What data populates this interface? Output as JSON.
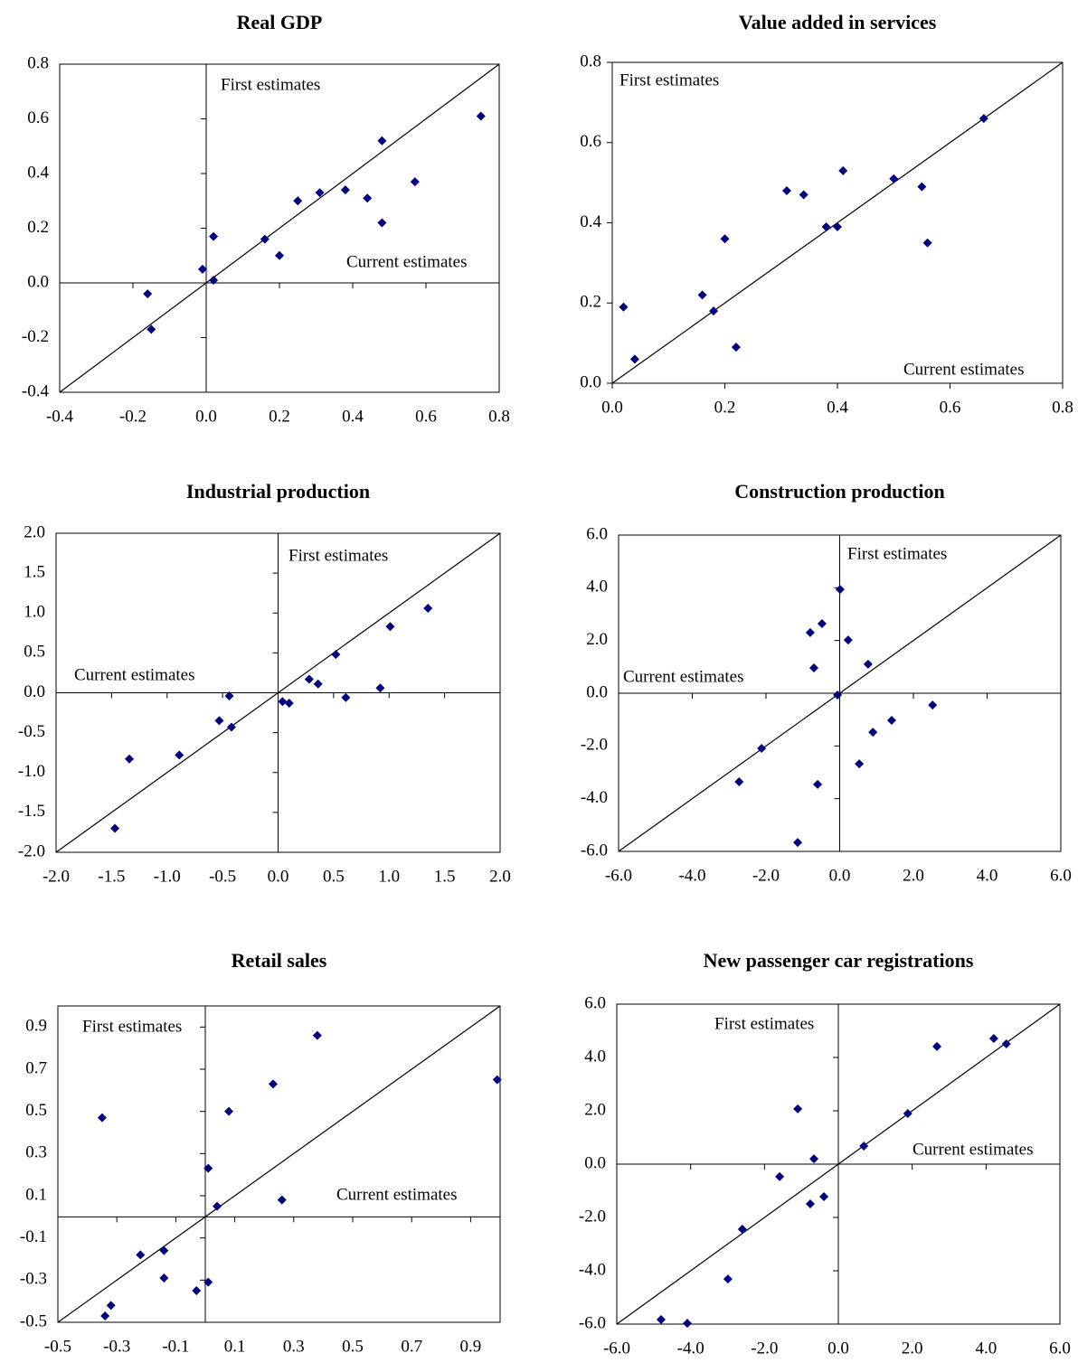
{
  "chart_data": [
    {
      "type": "scatter",
      "title": "Real GDP",
      "annotations": [
        "First estimates",
        "Current estimates"
      ],
      "color": "#000080",
      "x": [
        -0.16,
        -0.15,
        -0.01,
        0.02,
        0.02,
        0.16,
        0.2,
        0.25,
        0.31,
        0.38,
        0.44,
        0.48,
        0.48,
        0.57,
        0.75
      ],
      "values": [
        -0.04,
        -0.17,
        0.05,
        0.17,
        0.01,
        0.16,
        0.1,
        0.3,
        0.33,
        0.34,
        0.31,
        0.22,
        0.52,
        0.37,
        0.61
      ],
      "xlim": [
        -0.4,
        0.8
      ],
      "ylim": [
        -0.4,
        0.8
      ],
      "xticks": [
        -0.4,
        -0.2,
        {
          "value": 0,
          "label": "0.0"
        },
        0.2,
        0.4,
        0.6,
        0.8
      ],
      "yticks": [
        -0.4,
        -0.2,
        {
          "value": 0,
          "label": "0.0"
        },
        0.2,
        0.4,
        0.6,
        0.8
      ]
    },
    {
      "type": "scatter",
      "title": "Value added in services",
      "annotations": [
        "First estimates",
        "Current estimates"
      ],
      "color": "#000080",
      "x": [
        0.02,
        0.04,
        0.16,
        0.18,
        0.2,
        0.22,
        0.31,
        0.34,
        0.38,
        0.4,
        0.41,
        0.5,
        0.55,
        0.56,
        0.66
      ],
      "values": [
        0.19,
        0.06,
        0.22,
        0.18,
        0.36,
        0.09,
        0.48,
        0.47,
        0.39,
        0.39,
        0.53,
        0.51,
        0.49,
        0.35,
        0.66
      ],
      "xlim": [
        0,
        0.8
      ],
      "ylim": [
        0,
        0.8
      ],
      "xticks": [
        {
          "value": 0,
          "label": "0.0"
        },
        0.2,
        0.4,
        0.6,
        0.8
      ],
      "yticks": [
        {
          "value": 0,
          "label": "0.0"
        },
        0.2,
        0.4,
        0.6,
        0.8
      ]
    },
    {
      "type": "scatter",
      "title": "Industrial production",
      "annotations": [
        "First estimates",
        "Current estimates"
      ],
      "color": "#000080",
      "x": [
        -1.47,
        -1.34,
        -0.89,
        -0.53,
        -0.44,
        -0.42,
        0.04,
        0.1,
        0.28,
        0.36,
        0.52,
        0.61,
        0.92,
        1.01,
        1.35
      ],
      "values": [
        -1.7,
        -0.83,
        -0.78,
        -0.35,
        -0.04,
        -0.43,
        -0.11,
        -0.13,
        0.17,
        0.11,
        0.48,
        -0.06,
        0.06,
        0.83,
        1.06
      ],
      "xlim": [
        -2,
        2
      ],
      "ylim": [
        -2,
        2
      ],
      "xticks": [
        {
          "value": -2,
          "label": "-2.0"
        },
        -1.5,
        {
          "value": -1,
          "label": "-1.0"
        },
        -0.5,
        {
          "value": 0,
          "label": "0.0"
        },
        0.5,
        {
          "value": 1,
          "label": "1.0"
        },
        1.5,
        {
          "value": 2,
          "label": "2.0"
        }
      ],
      "yticks": [
        {
          "value": -2,
          "label": "-2.0"
        },
        -1.5,
        {
          "value": -1,
          "label": "-1.0"
        },
        -0.5,
        {
          "value": 0,
          "label": "0.0"
        },
        0.5,
        {
          "value": 1,
          "label": "1.0"
        },
        1.5,
        {
          "value": 2,
          "label": "2.0"
        }
      ]
    },
    {
      "type": "scatter",
      "title": "Construction production",
      "annotations": [
        "First estimates",
        "Current estimates"
      ],
      "color": "#000080",
      "x": [
        -2.73,
        -2.12,
        -1.14,
        -0.8,
        -0.7,
        -0.6,
        -0.48,
        -0.06,
        0.01,
        0.23,
        0.53,
        0.77,
        0.9,
        1.41,
        2.52
      ],
      "values": [
        -3.36,
        -2.09,
        -5.66,
        2.3,
        0.96,
        -3.46,
        2.64,
        -0.07,
        3.94,
        2.02,
        -2.68,
        1.1,
        -1.48,
        -1.03,
        -0.45
      ],
      "xlim": [
        -6,
        6
      ],
      "ylim": [
        -6,
        6
      ],
      "xticks": [
        {
          "value": -6,
          "label": "-6.0"
        },
        {
          "value": -4,
          "label": "-4.0"
        },
        {
          "value": -2,
          "label": "-2.0"
        },
        {
          "value": 0,
          "label": "0.0"
        },
        {
          "value": 2,
          "label": "2.0"
        },
        {
          "value": 4,
          "label": "4.0"
        },
        {
          "value": 6,
          "label": "6.0"
        }
      ],
      "yticks": [
        {
          "value": -6,
          "label": "-6.0"
        },
        {
          "value": -4,
          "label": "-4.0"
        },
        {
          "value": -2,
          "label": "-2.0"
        },
        {
          "value": 0,
          "label": "0.0"
        },
        {
          "value": 2,
          "label": "2.0"
        },
        {
          "value": 4,
          "label": "4.0"
        },
        {
          "value": 6,
          "label": "6.0"
        }
      ]
    },
    {
      "type": "scatter",
      "title": "Retail sales",
      "annotations": [
        "First estimates",
        "Current estimates"
      ],
      "color": "#000080",
      "x": [
        -0.35,
        -0.34,
        -0.32,
        -0.22,
        -0.14,
        -0.14,
        -0.03,
        0.01,
        0.01,
        0.04,
        0.08,
        0.23,
        0.26,
        0.38,
        0.99
      ],
      "values": [
        0.47,
        -0.47,
        -0.42,
        -0.18,
        -0.16,
        -0.29,
        -0.35,
        -0.31,
        0.23,
        0.05,
        0.5,
        0.63,
        0.08,
        0.86,
        0.65
      ],
      "xlim": [
        -0.5,
        1
      ],
      "ylim": [
        -0.5,
        1
      ],
      "xticks": [
        -0.5,
        -0.3,
        -0.1,
        0.1,
        0.3,
        0.5,
        0.7,
        0.9
      ],
      "yticks": [
        -0.5,
        -0.3,
        -0.1,
        0.1,
        0.3,
        0.5,
        0.7,
        0.9
      ]
    },
    {
      "type": "scatter",
      "title": "New passenger car registrations",
      "annotations": [
        "First estimates",
        "Current estimates"
      ],
      "color": "#000080",
      "x": [
        -4.8,
        -4.09,
        -2.99,
        -2.6,
        -1.59,
        -1.1,
        -0.76,
        -0.66,
        -0.39,
        0.69,
        1.88,
        2.67,
        4.21,
        4.55
      ],
      "values": [
        -5.83,
        -5.97,
        -4.31,
        -2.44,
        -0.47,
        2.07,
        -1.49,
        0.2,
        -1.22,
        0.68,
        1.9,
        4.41,
        4.71,
        4.51
      ],
      "xlim": [
        -6,
        6
      ],
      "ylim": [
        -6,
        6
      ],
      "xticks": [
        {
          "value": -6,
          "label": "-6.0"
        },
        {
          "value": -4,
          "label": "-4.0"
        },
        {
          "value": -2,
          "label": "-2.0"
        },
        {
          "value": 0,
          "label": "0.0"
        },
        {
          "value": 2,
          "label": "2.0"
        },
        {
          "value": 4,
          "label": "4.0"
        },
        {
          "value": 6,
          "label": "6.0"
        }
      ],
      "yticks": [
        {
          "value": -6,
          "label": "-6.0"
        },
        {
          "value": -4,
          "label": "-4.0"
        },
        {
          "value": -2,
          "label": "-2.0"
        },
        {
          "value": 0,
          "label": "0.0"
        },
        {
          "value": 2,
          "label": "2.0"
        },
        {
          "value": 4,
          "label": "4.0"
        },
        {
          "value": 6,
          "label": "6.0"
        }
      ]
    }
  ]
}
